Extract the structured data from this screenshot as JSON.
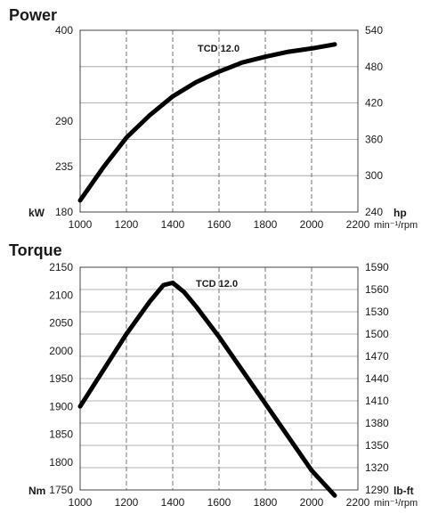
{
  "chart_data": [
    {
      "type": "line",
      "title": "Power",
      "series_label": "TCD 12.0",
      "x_unit_label": "min⁻¹/rpm",
      "left_unit": "kW",
      "right_unit": "hp",
      "xlim": [
        1000,
        2200
      ],
      "ylim": [
        180,
        400
      ],
      "ylim_right": [
        240,
        540
      ],
      "x_ticks": [
        "1000",
        "1200",
        "1400",
        "1600",
        "1800",
        "2000",
        "2200"
      ],
      "x_tick_values": [
        1000,
        1200,
        1400,
        1600,
        1800,
        2000,
        2200
      ],
      "y_ticks_left": [
        "180",
        "235",
        "290",
        "400"
      ],
      "y_tick_values_left": [
        180,
        235,
        290,
        400
      ],
      "y_ticks_right": [
        "240",
        "300",
        "360",
        "420",
        "480",
        "540"
      ],
      "y_tick_values_right": [
        240,
        300,
        360,
        420,
        480,
        540
      ],
      "grid": true,
      "series": [
        {
          "x": [
            1000,
            1100,
            1200,
            1300,
            1400,
            1500,
            1600,
            1700,
            1800,
            1900,
            2000,
            2100
          ],
          "y": [
            194,
            234,
            270,
            297,
            320,
            337,
            350,
            361,
            368,
            374,
            378,
            383
          ]
        }
      ]
    },
    {
      "type": "line",
      "title": "Torque",
      "series_label": "TCD 12.0",
      "x_unit_label": "min⁻¹/rpm",
      "left_unit": "Nm",
      "right_unit": "lb-ft",
      "xlim": [
        1000,
        2200
      ],
      "ylim": [
        1750,
        2150
      ],
      "ylim_right": [
        1290,
        1590
      ],
      "x_ticks": [
        "1000",
        "1200",
        "1400",
        "1600",
        "1800",
        "2000",
        "2200"
      ],
      "x_tick_values": [
        1000,
        1200,
        1400,
        1600,
        1800,
        2000,
        2200
      ],
      "y_ticks_left": [
        "1750",
        "1800",
        "1850",
        "1900",
        "1950",
        "2000",
        "2050",
        "2100",
        "2150"
      ],
      "y_tick_values_left": [
        1750,
        1800,
        1850,
        1900,
        1950,
        2000,
        2050,
        2100,
        2150
      ],
      "y_ticks_right": [
        "1290",
        "1320",
        "1350",
        "1380",
        "1410",
        "1440",
        "1470",
        "1500",
        "1530",
        "1560",
        "1590"
      ],
      "y_tick_values_right": [
        1290,
        1320,
        1350,
        1380,
        1410,
        1440,
        1470,
        1500,
        1530,
        1560,
        1590
      ],
      "grid": true,
      "series": [
        {
          "x": [
            1000,
            1100,
            1200,
            1300,
            1360,
            1400,
            1450,
            1500,
            1600,
            1700,
            1800,
            1900,
            2000,
            2100
          ],
          "y": [
            1900,
            1965,
            2030,
            2088,
            2118,
            2122,
            2105,
            2080,
            2025,
            1965,
            1905,
            1845,
            1785,
            1740
          ]
        }
      ]
    }
  ]
}
